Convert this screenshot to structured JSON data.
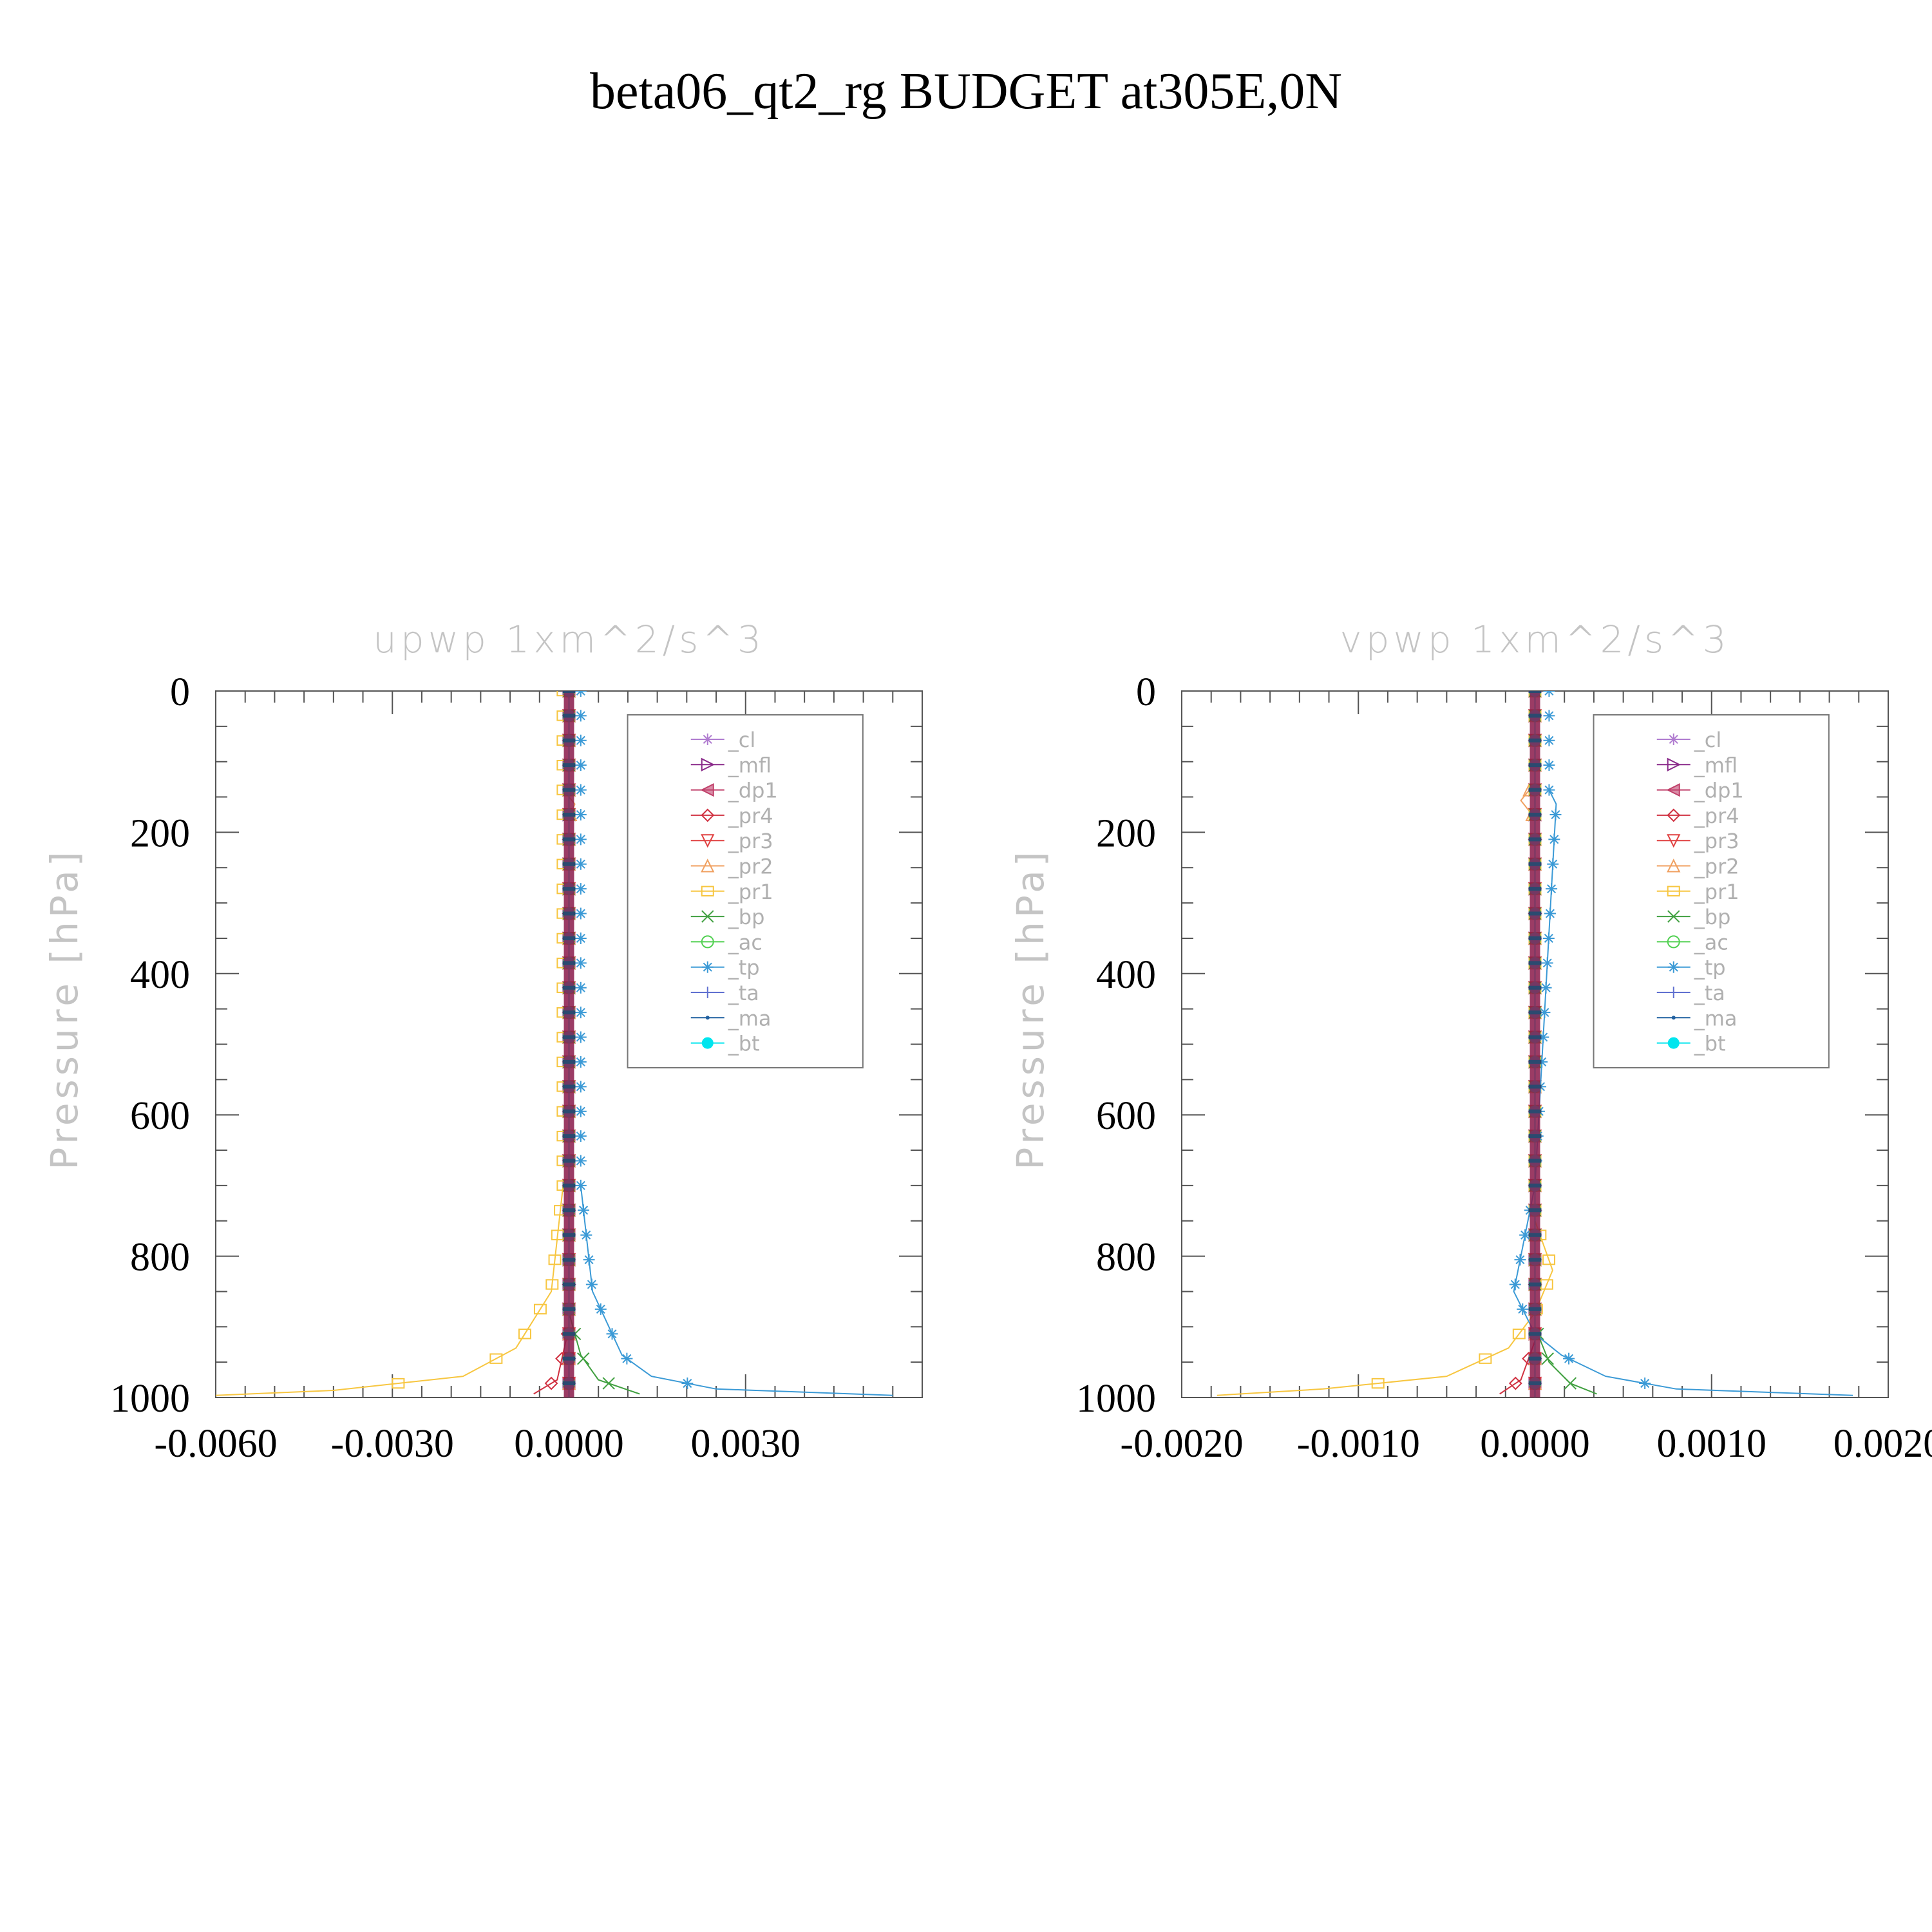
{
  "figure_title": "beta06_qt2_rg  BUDGET at305E,0N",
  "chart_data": [
    {
      "type": "line",
      "title": "upwp    1xm^2/s^3",
      "ylabel": "Pressure  [hPa]",
      "ylim": [
        1000,
        0
      ],
      "xlim": [
        -0.006,
        0.006
      ],
      "y_ticks": [
        "0",
        "200",
        "400",
        "600",
        "800",
        "1000"
      ],
      "x_ticks": [
        "-0.0060",
        "-0.0030",
        "0.0000",
        "0.0030"
      ],
      "legend_position": "top-right",
      "series": [
        {
          "name": "_cl",
          "color": "#b07cd0",
          "marker": "star",
          "points": [
            [
              0,
              0
            ],
            [
              0,
              500
            ],
            [
              0,
              1000
            ]
          ]
        },
        {
          "name": "_mfl",
          "color": "#8a2a8a",
          "marker": "triangle-right",
          "points": [
            [
              0,
              0
            ],
            [
              0,
              500
            ],
            [
              0,
              1000
            ]
          ]
        },
        {
          "name": "_dp1",
          "color": "#c0406a",
          "marker": "triangle-left",
          "points": [
            [
              0,
              0
            ],
            [
              0,
              500
            ],
            [
              0,
              1000
            ]
          ]
        },
        {
          "name": "_pr4",
          "color": "#d03040",
          "marker": "diamond",
          "points": [
            [
              0,
              900
            ],
            [
              -0.0002,
              975
            ],
            [
              -0.0006,
              995
            ]
          ]
        },
        {
          "name": "_pr3",
          "color": "#e04040",
          "marker": "triangle-down",
          "points": [
            [
              0,
              0
            ],
            [
              0,
              500
            ],
            [
              0,
              1000
            ]
          ]
        },
        {
          "name": "_pr2",
          "color": "#f0a060",
          "marker": "triangle-up",
          "points": [
            [
              0,
              150
            ],
            [
              0.0001,
              160
            ],
            [
              0,
              180
            ]
          ]
        },
        {
          "name": "_pr1",
          "color": "#f7c640",
          "marker": "square",
          "points": [
            [
              -0.0001,
              700
            ],
            [
              -0.0003,
              850
            ],
            [
              -0.0009,
              930
            ],
            [
              -0.0018,
              970
            ],
            [
              -0.004,
              990
            ],
            [
              -0.006,
              997
            ]
          ]
        },
        {
          "name": "_bp",
          "color": "#40a040",
          "marker": "x",
          "points": [
            [
              0,
              880
            ],
            [
              0.0002,
              940
            ],
            [
              0.0005,
              975
            ],
            [
              0.0012,
              995
            ]
          ]
        },
        {
          "name": "_ac",
          "color": "#50d050",
          "marker": "circle",
          "points": [
            [
              0,
              0
            ],
            [
              0,
              500
            ],
            [
              0,
              1000
            ]
          ]
        },
        {
          "name": "_tp",
          "color": "#3b9ad6",
          "marker": "asterisk",
          "points": [
            [
              0.0002,
              700
            ],
            [
              0.0004,
              850
            ],
            [
              0.0009,
              940
            ],
            [
              0.0014,
              970
            ],
            [
              0.0025,
              988
            ],
            [
              0.0055,
              997
            ]
          ]
        },
        {
          "name": "_ta",
          "color": "#6070d0",
          "marker": "plus",
          "points": [
            [
              0,
              0
            ],
            [
              0,
              500
            ],
            [
              0,
              1000
            ]
          ]
        },
        {
          "name": "_ma",
          "color": "#2060a0",
          "marker": "dot",
          "points": [
            [
              0,
              0
            ],
            [
              0,
              500
            ],
            [
              0,
              1000
            ]
          ]
        },
        {
          "name": "_bt",
          "color": "#00e5ee",
          "marker": "filled-circle",
          "points": [
            [
              0,
              0
            ],
            [
              0,
              500
            ],
            [
              0,
              1000
            ]
          ]
        }
      ]
    },
    {
      "type": "line",
      "title": "vpwp    1xm^2/s^3",
      "ylabel": "Pressure  [hPa]",
      "ylim": [
        1000,
        0
      ],
      "xlim": [
        -0.002,
        0.002
      ],
      "y_ticks": [
        "0",
        "200",
        "400",
        "600",
        "800",
        "1000"
      ],
      "x_ticks": [
        "-0.0020",
        "-0.0010",
        "0.0000",
        "0.0010",
        "0.0020"
      ],
      "legend_position": "top-right",
      "series": [
        {
          "name": "_cl",
          "color": "#b07cd0",
          "marker": "star",
          "points": [
            [
              0,
              0
            ],
            [
              0,
              500
            ],
            [
              0,
              1000
            ]
          ]
        },
        {
          "name": "_mfl",
          "color": "#8a2a8a",
          "marker": "triangle-right",
          "points": [
            [
              0,
              0
            ],
            [
              0,
              500
            ],
            [
              0,
              1000
            ]
          ]
        },
        {
          "name": "_dp1",
          "color": "#c0406a",
          "marker": "triangle-left",
          "points": [
            [
              0,
              0
            ],
            [
              0,
              500
            ],
            [
              0,
              1000
            ]
          ]
        },
        {
          "name": "_pr4",
          "color": "#d03040",
          "marker": "diamond",
          "points": [
            [
              0,
              920
            ],
            [
              -8e-05,
              975
            ],
            [
              -0.0002,
              995
            ]
          ]
        },
        {
          "name": "_pr3",
          "color": "#e04040",
          "marker": "triangle-down",
          "points": [
            [
              0,
              0
            ],
            [
              0,
              500
            ],
            [
              0,
              1000
            ]
          ]
        },
        {
          "name": "_pr2",
          "color": "#f0a060",
          "marker": "triangle-up",
          "points": [
            [
              0,
              130
            ],
            [
              -8e-05,
              155
            ],
            [
              0,
              180
            ]
          ]
        },
        {
          "name": "_pr1",
          "color": "#f7c640",
          "marker": "square",
          "points": [
            [
              0,
              750
            ],
            [
              0.0001,
              820
            ],
            [
              0,
              880
            ],
            [
              -0.00015,
              930
            ],
            [
              -0.0005,
              970
            ],
            [
              -0.0012,
              988
            ],
            [
              -0.0018,
              997
            ]
          ]
        },
        {
          "name": "_bp",
          "color": "#40a040",
          "marker": "x",
          "points": [
            [
              0,
              900
            ],
            [
              8e-05,
              950
            ],
            [
              0.0002,
              980
            ],
            [
              0.00035,
              995
            ]
          ]
        },
        {
          "name": "_ac",
          "color": "#50d050",
          "marker": "circle",
          "points": [
            [
              0,
              0
            ],
            [
              0,
              500
            ],
            [
              0,
              1000
            ]
          ]
        },
        {
          "name": "_tp",
          "color": "#3b9ad6",
          "marker": "asterisk",
          "points": [
            [
              8e-05,
              140
            ],
            [
              0.00012,
              160
            ],
            [
              0,
              700
            ],
            [
              -0.00012,
              850
            ],
            [
              0,
              910
            ],
            [
              0.00015,
              940
            ],
            [
              0.0004,
              970
            ],
            [
              0.0008,
              988
            ],
            [
              0.0018,
              997
            ]
          ]
        },
        {
          "name": "_ta",
          "color": "#6070d0",
          "marker": "plus",
          "points": [
            [
              0,
              0
            ],
            [
              0,
              500
            ],
            [
              0,
              1000
            ]
          ]
        },
        {
          "name": "_ma",
          "color": "#2060a0",
          "marker": "dot",
          "points": [
            [
              0,
              0
            ],
            [
              0,
              500
            ],
            [
              0,
              1000
            ]
          ]
        },
        {
          "name": "_bt",
          "color": "#00e5ee",
          "marker": "filled-circle",
          "points": [
            [
              0,
              0
            ],
            [
              0,
              500
            ],
            [
              0,
              1000
            ]
          ]
        }
      ]
    }
  ]
}
